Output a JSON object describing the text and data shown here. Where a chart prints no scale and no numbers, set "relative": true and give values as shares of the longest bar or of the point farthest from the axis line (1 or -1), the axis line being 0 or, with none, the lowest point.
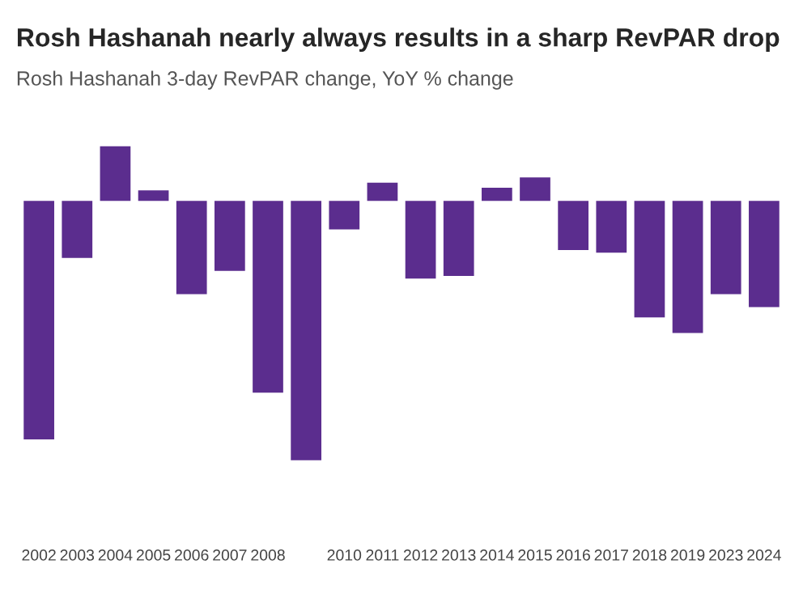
{
  "chart_data": {
    "type": "bar",
    "title": "Rosh Hashanah nearly always results in a sharp RevPAR drop",
    "subtitle": "Rosh Hashanah 3-day RevPAR change, YoY % change",
    "categories": [
      "2002",
      "2003",
      "2004",
      "2005",
      "2006",
      "2007",
      "2008",
      null,
      "2010",
      "2011",
      "2012",
      "2013",
      "2014",
      "2015",
      "2016",
      "2017",
      "2018",
      "2019",
      "2023",
      "2024"
    ],
    "values": [
      -0.92,
      -0.22,
      0.21,
      0.04,
      -0.36,
      -0.27,
      -0.74,
      -1,
      -0.11,
      0.07,
      -0.3,
      -0.29,
      0.05,
      0.09,
      -0.19,
      -0.2,
      -0.45,
      -0.51,
      -0.36,
      -0.41
    ],
    "color": "#5b2d8e",
    "relative": true,
    "grid": false,
    "legend": false
  }
}
